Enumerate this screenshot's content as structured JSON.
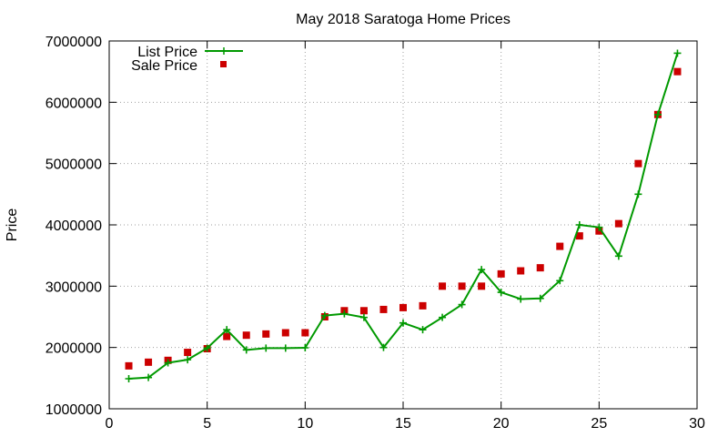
{
  "chart_data": {
    "type": "line",
    "title": "May 2018 Saratoga Home Prices",
    "xlabel": "",
    "ylabel": "Price",
    "xlim": [
      0,
      30
    ],
    "ylim": [
      1000000,
      7000000
    ],
    "xticks": [
      0,
      5,
      10,
      15,
      20,
      25,
      30
    ],
    "yticks": [
      1000000,
      2000000,
      3000000,
      4000000,
      5000000,
      6000000,
      7000000
    ],
    "grid": "dotted",
    "legend_position": "top-left",
    "series": [
      {
        "name": "List Price",
        "style": "line-with-plus-markers",
        "color": "#009900",
        "x": [
          1,
          2,
          3,
          4,
          5,
          6,
          7,
          8,
          9,
          10,
          11,
          12,
          13,
          14,
          15,
          16,
          17,
          18,
          19,
          20,
          21,
          22,
          23,
          24,
          25,
          26,
          27,
          28,
          29
        ],
        "y": [
          1490000,
          1510000,
          1750000,
          1800000,
          1990000,
          2290000,
          1960000,
          1990000,
          1990000,
          1995000,
          2520000,
          2550000,
          2490000,
          2000000,
          2400000,
          2290000,
          2490000,
          2700000,
          3270000,
          2900000,
          2790000,
          2800000,
          3090000,
          4000000,
          3960000,
          3490000,
          4500000,
          5800000,
          6800000
        ]
      },
      {
        "name": "Sale Price",
        "style": "square-markers",
        "color": "#cc0000",
        "x": [
          1,
          2,
          3,
          4,
          5,
          6,
          7,
          8,
          9,
          10,
          11,
          12,
          13,
          14,
          15,
          16,
          17,
          18,
          19,
          20,
          21,
          22,
          23,
          24,
          25,
          26,
          27,
          28,
          29
        ],
        "y": [
          1700000,
          1760000,
          1790000,
          1920000,
          1980000,
          2180000,
          2200000,
          2220000,
          2240000,
          2240000,
          2500000,
          2600000,
          2600000,
          2620000,
          2650000,
          2680000,
          3000000,
          3000000,
          3000000,
          3200000,
          3250000,
          3300000,
          3650000,
          3820000,
          3900000,
          4020000,
          5000000,
          5800000,
          6500000
        ]
      }
    ]
  }
}
